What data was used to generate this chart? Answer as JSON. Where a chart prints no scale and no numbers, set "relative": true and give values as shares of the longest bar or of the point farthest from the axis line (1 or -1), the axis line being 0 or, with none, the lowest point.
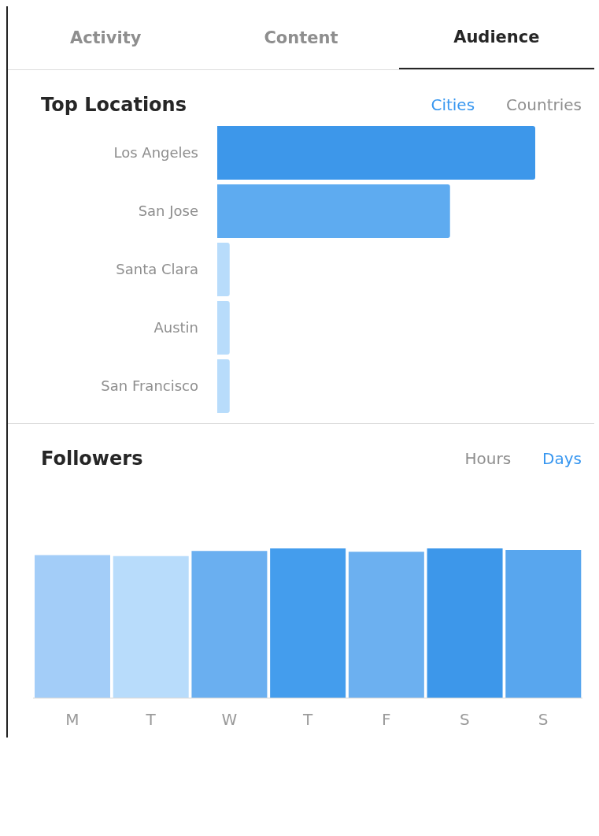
{
  "chart_data": [
    {
      "type": "bar",
      "title": "Top Locations",
      "orientation": "horizontal",
      "relative": true,
      "annotations": [
        "Activity",
        "Content",
        "Audience",
        "Cities",
        "Countries"
      ],
      "categories": [
        "Los Angeles",
        "San Jose",
        "Santa Clara",
        "Austin",
        "San Francisco"
      ],
      "values": [
        1,
        0.732,
        0.039,
        0.039,
        0.039
      ],
      "colors": [
        "#3d97ea",
        "#5eabf0",
        "#b8dcfb",
        "#b8dcfb",
        "#b8dcfb"
      ]
    },
    {
      "type": "bar",
      "title": "Followers",
      "relative": true,
      "annotations": [
        "Hours",
        "Days"
      ],
      "categories": [
        "M",
        "T",
        "W",
        "T",
        "F",
        "S",
        "S"
      ],
      "values": [
        0.955,
        0.949,
        0.983,
        1,
        0.978,
        1,
        0.989
      ],
      "colors": [
        "#a3cdf8",
        "#b8dcfb",
        "#6aaff0",
        "#449ded",
        "#6cb0f0",
        "#3d97ea",
        "#58a6ee"
      ]
    }
  ]
}
